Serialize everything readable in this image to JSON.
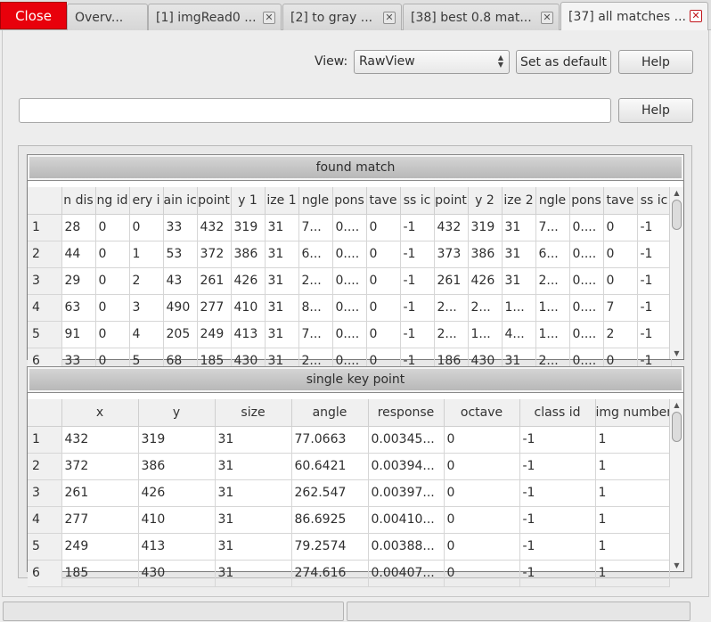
{
  "tabs": {
    "close_label": "Close",
    "items": [
      {
        "label": "Overv..."
      },
      {
        "label": "[1] imgRead0  ..."
      },
      {
        "label": "[2] to gray  ..."
      },
      {
        "label": "[38] best 0.8 mat..."
      },
      {
        "label": "[37] all matches ..."
      }
    ],
    "close_glyph": "✕"
  },
  "toolbar": {
    "view_label": "View:",
    "view_value": "RawView",
    "set_default_label": "Set as default",
    "help_label": "Help"
  },
  "filter": {
    "value": "",
    "help_label": "Help"
  },
  "found_match": {
    "title": "found match",
    "columns": [
      "n dis",
      "ng id",
      "ery i",
      "ain ic",
      "point",
      "y 1",
      "ize 1",
      "ngle",
      "pons",
      "tave",
      "ss ic",
      "point",
      "y 2",
      "ize 2",
      "ngle",
      "pons",
      "tave",
      "ss ic"
    ],
    "rows": [
      {
        "h": "1",
        "c": [
          "28",
          "0",
          "0",
          "33",
          "432",
          "319",
          "31",
          "7...",
          "0....",
          "0",
          "-1",
          "432",
          "319",
          "31",
          "7...",
          "0....",
          "0",
          "-1"
        ]
      },
      {
        "h": "2",
        "c": [
          "44",
          "0",
          "1",
          "53",
          "372",
          "386",
          "31",
          "6...",
          "0....",
          "0",
          "-1",
          "373",
          "386",
          "31",
          "6...",
          "0....",
          "0",
          "-1"
        ]
      },
      {
        "h": "3",
        "c": [
          "29",
          "0",
          "2",
          "43",
          "261",
          "426",
          "31",
          "2...",
          "0....",
          "0",
          "-1",
          "261",
          "426",
          "31",
          "2...",
          "0....",
          "0",
          "-1"
        ]
      },
      {
        "h": "4",
        "c": [
          "63",
          "0",
          "3",
          "490",
          "277",
          "410",
          "31",
          "8...",
          "0....",
          "0",
          "-1",
          "2...",
          "2...",
          "1...",
          "1...",
          "0....",
          "7",
          "-1"
        ]
      },
      {
        "h": "5",
        "c": [
          "91",
          "0",
          "4",
          "205",
          "249",
          "413",
          "31",
          "7...",
          "0....",
          "0",
          "-1",
          "2...",
          "1...",
          "4...",
          "1...",
          "0....",
          "2",
          "-1"
        ]
      },
      {
        "h": "6",
        "c": [
          "33",
          "0",
          "5",
          "68",
          "185",
          "430",
          "31",
          "2...",
          "0....",
          "0",
          "-1",
          "186",
          "430",
          "31",
          "2...",
          "0....",
          "0",
          "-1"
        ]
      }
    ]
  },
  "single_key_point": {
    "title": "single key point",
    "columns": [
      "x",
      "y",
      "size",
      "angle",
      "response",
      "octave",
      "class id",
      "img number"
    ],
    "rows": [
      {
        "h": "1",
        "c": [
          "432",
          "319",
          "31",
          "77.0663",
          "0.00345...",
          "0",
          "-1",
          "1"
        ]
      },
      {
        "h": "2",
        "c": [
          "372",
          "386",
          "31",
          "60.6421",
          "0.00394...",
          "0",
          "-1",
          "1"
        ]
      },
      {
        "h": "3",
        "c": [
          "261",
          "426",
          "31",
          "262.547",
          "0.00397...",
          "0",
          "-1",
          "1"
        ]
      },
      {
        "h": "4",
        "c": [
          "277",
          "410",
          "31",
          "86.6925",
          "0.00410...",
          "0",
          "-1",
          "1"
        ]
      },
      {
        "h": "5",
        "c": [
          "249",
          "413",
          "31",
          "79.2574",
          "0.00388...",
          "0",
          "-1",
          "1"
        ]
      },
      {
        "h": "6",
        "c": [
          "185",
          "430",
          "31",
          "274.616",
          "0.00407...",
          "0",
          "-1",
          "1"
        ]
      }
    ]
  },
  "colors": {
    "close_button": "#e8000b",
    "header_gradient": "#c4c4c4"
  }
}
